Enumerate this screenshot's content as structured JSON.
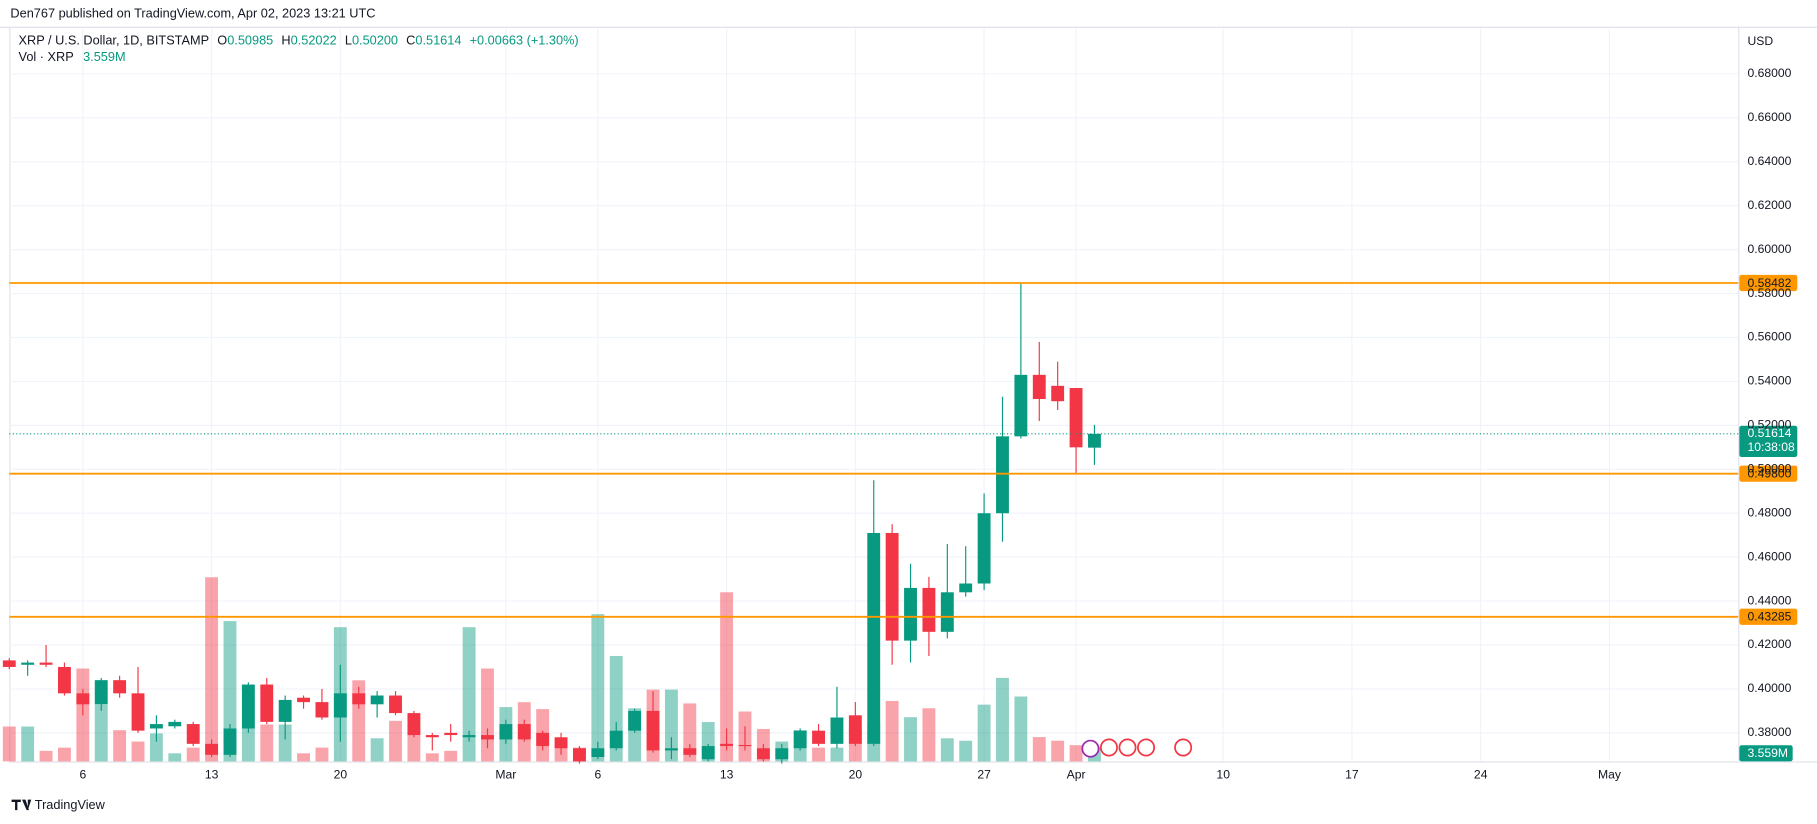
{
  "chart_data": {
    "type": "candlestick",
    "published": "Den767 published on TradingView.com, Apr 02, 2023 13:21 UTC",
    "title": "XRP / U.S. Dollar, 1D, BITSTAMP",
    "ohlc_legend": [
      {
        "label": "O",
        "text": "0.50985"
      },
      {
        "label": "H",
        "text": "0.52022"
      },
      {
        "label": "L",
        "text": "0.50200"
      },
      {
        "label": "C",
        "text": "0.51614"
      }
    ],
    "change": "+0.00663 (+1.30%)",
    "currency": "USD",
    "brand": "TradingView",
    "up_color": "#089981",
    "down_color": "#f23645",
    "open": [
      0.413,
      0.411,
      0.412,
      0.41,
      0.398,
      0.393,
      0.404,
      0.398,
      0.382,
      0.383,
      0.384,
      0.375,
      0.37,
      0.382,
      0.402,
      0.385,
      0.396,
      0.394,
      0.387,
      0.398,
      0.393,
      0.397,
      0.389,
      0.379,
      0.38,
      0.378,
      0.379,
      0.377,
      0.384,
      0.38,
      0.378,
      0.373,
      0.369,
      0.373,
      0.381,
      0.39,
      0.372,
      0.373,
      0.368,
      0.375,
      0.3745,
      0.373,
      0.368,
      0.373,
      0.381,
      0.375,
      0.388,
      0.375,
      0.471,
      0.422,
      0.446,
      0.426,
      0.444,
      0.448,
      0.48,
      0.515,
      0.543,
      0.538,
      0.537,
      0.50985
    ],
    "high": [
      0.414,
      0.413,
      0.42,
      0.412,
      0.4,
      0.405,
      0.406,
      0.41,
      0.388,
      0.386,
      0.385,
      0.377,
      0.384,
      0.403,
      0.405,
      0.397,
      0.397,
      0.4,
      0.411,
      0.401,
      0.399,
      0.399,
      0.39,
      0.38,
      0.384,
      0.381,
      0.382,
      0.386,
      0.386,
      0.381,
      0.38,
      0.374,
      0.376,
      0.385,
      0.391,
      0.399,
      0.378,
      0.375,
      0.375,
      0.382,
      0.383,
      0.375,
      0.375,
      0.382,
      0.384,
      0.401,
      0.394,
      0.495,
      0.475,
      0.457,
      0.451,
      0.466,
      0.465,
      0.489,
      0.533,
      0.585,
      0.558,
      0.549,
      0.537,
      0.52022
    ],
    "low": [
      0.409,
      0.406,
      0.41,
      0.397,
      0.388,
      0.39,
      0.396,
      0.38,
      0.376,
      0.382,
      0.374,
      0.369,
      0.369,
      0.38,
      0.384,
      0.377,
      0.391,
      0.386,
      0.376,
      0.391,
      0.387,
      0.388,
      0.378,
      0.372,
      0.376,
      0.376,
      0.373,
      0.375,
      0.376,
      0.372,
      0.37,
      0.366,
      0.368,
      0.372,
      0.38,
      0.371,
      0.368,
      0.369,
      0.367,
      0.372,
      0.372,
      0.367,
      0.366,
      0.372,
      0.374,
      0.373,
      0.374,
      0.374,
      0.411,
      0.412,
      0.415,
      0.423,
      0.442,
      0.445,
      0.467,
      0.514,
      0.522,
      0.527,
      0.498,
      0.502
    ],
    "close": [
      0.41,
      0.412,
      0.411,
      0.398,
      0.393,
      0.404,
      0.398,
      0.381,
      0.384,
      0.385,
      0.375,
      0.37,
      0.382,
      0.402,
      0.385,
      0.395,
      0.394,
      0.387,
      0.398,
      0.393,
      0.397,
      0.389,
      0.379,
      0.378,
      0.379,
      0.379,
      0.377,
      0.384,
      0.377,
      0.374,
      0.373,
      0.367,
      0.373,
      0.381,
      0.39,
      0.372,
      0.373,
      0.37,
      0.374,
      0.374,
      0.374,
      0.368,
      0.373,
      0.381,
      0.375,
      0.387,
      0.375,
      0.471,
      0.422,
      0.446,
      0.426,
      0.444,
      0.448,
      0.48,
      0.515,
      0.543,
      0.532,
      0.531,
      0.51,
      0.51614
    ],
    "volume": {
      "name": "Vol · XRP",
      "last_label": "3.559M",
      "lim": [
        0,
        60000000
      ],
      "values": [
        8600000,
        8600000,
        2600000,
        3400000,
        22900000,
        14000000,
        7700000,
        4900000,
        6900000,
        2000000,
        3400000,
        45400000,
        34600000,
        8300000,
        9100000,
        9100000,
        2000000,
        3400000,
        33100000,
        20000000,
        5700000,
        10000000,
        8600000,
        2000000,
        2600000,
        33100000,
        22900000,
        13400000,
        14600000,
        12900000,
        4000000,
        3400000,
        36300000,
        26000000,
        13100000,
        17700000,
        17700000,
        14300000,
        9700000,
        41700000,
        12300000,
        8000000,
        4900000,
        7700000,
        3400000,
        3400000,
        8000000,
        9100000,
        14900000,
        10900000,
        13100000,
        5700000,
        5100000,
        14000000,
        20600000,
        16000000,
        6000000,
        5100000,
        4000000,
        3559000
      ]
    },
    "xlim": [
      0,
      94
    ],
    "xticks": [
      {
        "value": 4,
        "label": "6"
      },
      {
        "value": 11,
        "label": "13"
      },
      {
        "value": 18,
        "label": "20"
      },
      {
        "value": 27,
        "label": "Mar"
      },
      {
        "value": 32,
        "label": "6"
      },
      {
        "value": 39,
        "label": "13"
      },
      {
        "value": 46,
        "label": "20"
      },
      {
        "value": 53,
        "label": "27"
      },
      {
        "value": 58,
        "label": "Apr"
      },
      {
        "value": 66,
        "label": "10"
      },
      {
        "value": 73,
        "label": "17"
      },
      {
        "value": 80,
        "label": "24"
      },
      {
        "value": 87,
        "label": "May"
      }
    ],
    "ylim": [
      0.367,
      0.701
    ],
    "yticks": [
      {
        "value": 0.38,
        "label": "0.38000"
      },
      {
        "value": 0.4,
        "label": "0.40000"
      },
      {
        "value": 0.42,
        "label": "0.42000"
      },
      {
        "value": 0.44,
        "label": "0.44000"
      },
      {
        "value": 0.46,
        "label": "0.46000"
      },
      {
        "value": 0.48,
        "label": "0.48000"
      },
      {
        "value": 0.5,
        "label": "0.50000"
      },
      {
        "value": 0.52,
        "label": "0.52000"
      },
      {
        "value": 0.54,
        "label": "0.54000"
      },
      {
        "value": 0.56,
        "label": "0.56000"
      },
      {
        "value": 0.58,
        "label": "0.58000"
      },
      {
        "value": 0.6,
        "label": "0.60000"
      },
      {
        "value": 0.62,
        "label": "0.62000"
      },
      {
        "value": 0.64,
        "label": "0.64000"
      },
      {
        "value": 0.66,
        "label": "0.66000"
      },
      {
        "value": 0.68,
        "label": "0.68000"
      }
    ],
    "grid": true,
    "levels": [
      {
        "value": 0.58482,
        "label": "0.58482"
      },
      {
        "value": 0.498,
        "label": "0.49800"
      },
      {
        "value": 0.43285,
        "label": "0.43285"
      }
    ],
    "level_color": "#ff9800",
    "last_price": {
      "value": 0.51614,
      "label": "0.51614",
      "countdown": "10:38:08"
    }
  }
}
